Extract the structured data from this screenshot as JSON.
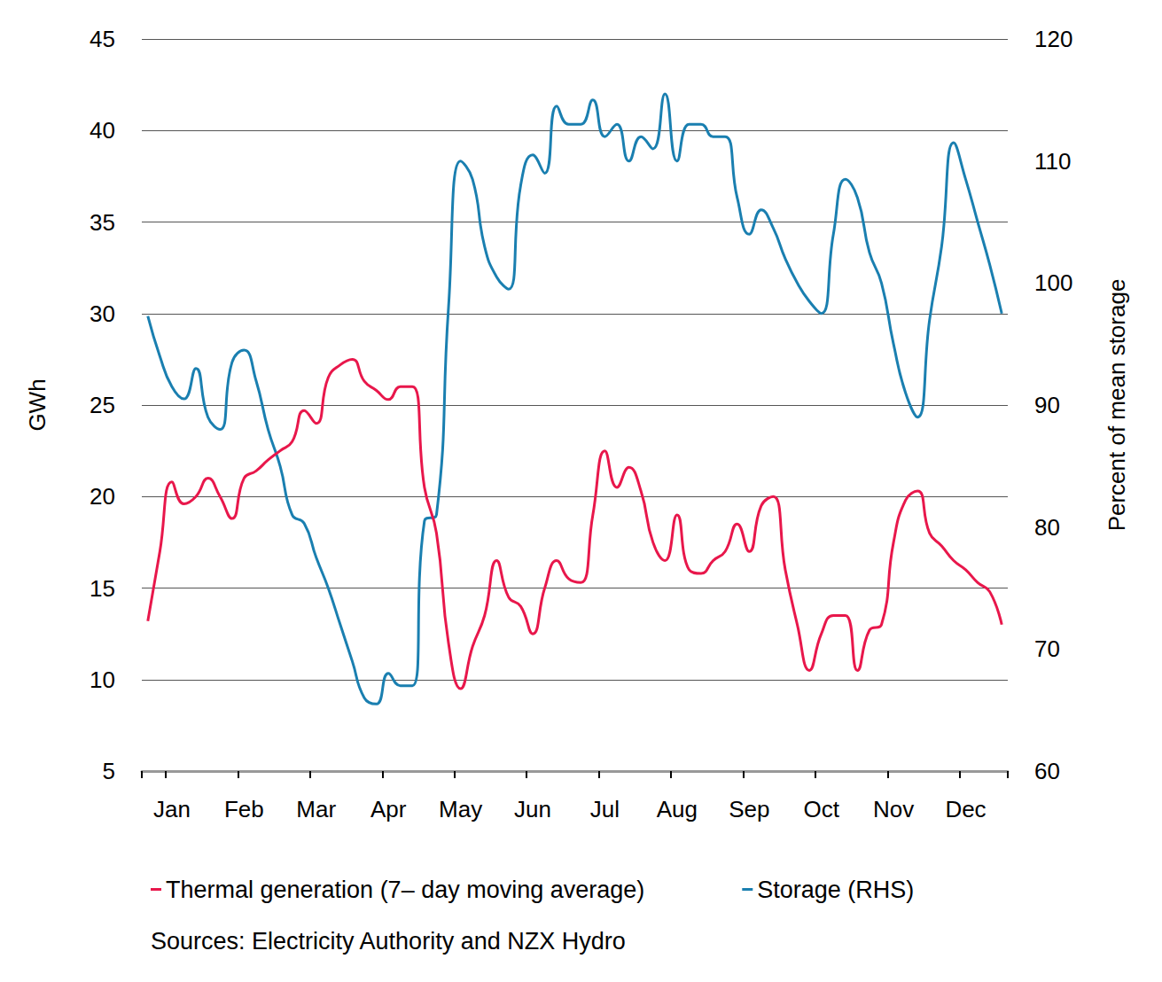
{
  "chart_data": {
    "type": "line",
    "y_label": "GWh",
    "y2_label": "Percent of mean storage",
    "source": "Sources: Electricity Authority and NZX Hydro",
    "categories": [
      null,
      null,
      "Jan",
      null,
      null,
      null,
      null,
      null,
      "Feb",
      null,
      null,
      null,
      null,
      null,
      "Mar",
      null,
      null,
      null,
      null,
      null,
      "Apr",
      null,
      null,
      null,
      null,
      null,
      "May",
      null,
      null,
      null,
      null,
      null,
      "Jun",
      null,
      null,
      null,
      null,
      null,
      "Jul",
      null,
      null,
      null,
      null,
      null,
      "Aug",
      null,
      null,
      null,
      null,
      null,
      "Sep",
      null,
      null,
      null,
      null,
      null,
      "Oct",
      null,
      null,
      null,
      null,
      null,
      "Nov",
      null,
      null,
      null,
      null,
      null,
      "Dec",
      null,
      null,
      null
    ],
    "series": [
      {
        "name": "Thermal generation (7– day moving average)",
        "color": "#e8174b",
        "axis": "y",
        "values": [
          13.2,
          17,
          20.8,
          19.6,
          20,
          21,
          20,
          18.8,
          21,
          21.4,
          22,
          22.5,
          23,
          24.7,
          24,
          26.5,
          27.2,
          27.5,
          26.3,
          25.8,
          25.3,
          26,
          26,
          20.5,
          18,
          12,
          9.5,
          11.8,
          13.5,
          16.5,
          14.5,
          14,
          12.5,
          15,
          16.5,
          15.5,
          15.3,
          19,
          22.5,
          20.5,
          21.6,
          20.3,
          17.5,
          16.5,
          19,
          16,
          15.8,
          16.5,
          17,
          18.5,
          17,
          19.5,
          20,
          16,
          13,
          10.5,
          12.5,
          13.5,
          13.5,
          10.5,
          12.7,
          13,
          17.5,
          19.8,
          20.3,
          18,
          17.3,
          16.5,
          16,
          15.3,
          14.8,
          13
        ]
      },
      {
        "name": "Storage (RHS)",
        "color": "#1a7fb0",
        "axis": "y2",
        "values": [
          97.3,
          94,
          91.5,
          90.5,
          93,
          89,
          88,
          93.5,
          94.5,
          92,
          88,
          85,
          81,
          80.3,
          77.5,
          75,
          72,
          69,
          66,
          65.5,
          68,
          67,
          67,
          80.5,
          81,
          98,
          110,
          108.5,
          103,
          100.5,
          99.5,
          108,
          110.5,
          109,
          114.5,
          113,
          113,
          115,
          112,
          113,
          110,
          112,
          111,
          115.5,
          110,
          113,
          113,
          112,
          112,
          107,
          104,
          106,
          104.5,
          102,
          100,
          98.5,
          97.5,
          104,
          108.5,
          107,
          102.5,
          100,
          95,
          91,
          89,
          97,
          103,
          111.5,
          108.5,
          105,
          101.5,
          97.5
        ]
      }
    ],
    "ylim": [
      5,
      45
    ],
    "yticks": [
      5,
      10,
      15,
      20,
      25,
      30,
      35,
      40,
      45
    ],
    "y2lim": [
      60,
      120
    ],
    "y2ticks": [
      60,
      70,
      80,
      90,
      100,
      110,
      120
    ],
    "grid": true,
    "legend": "bottom"
  }
}
